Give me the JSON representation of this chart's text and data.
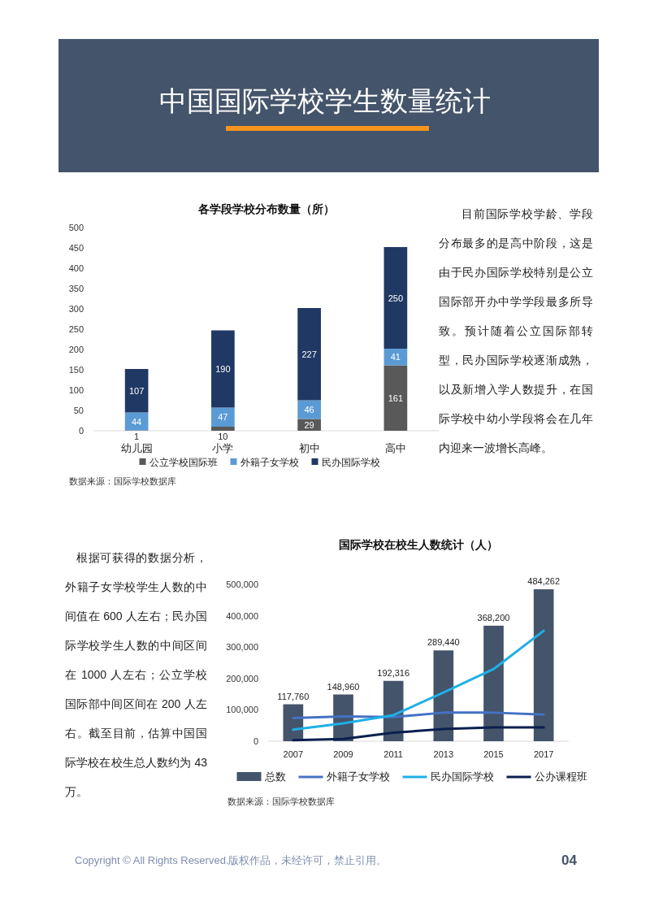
{
  "chart_data": [
    {
      "type": "other",
      "title": "中国国际学校学生数量统计"
    },
    {
      "type": "bar",
      "stacked": true,
      "title": "各学段学校分布数量（所）",
      "categories": [
        "幼儿园",
        "小学",
        "初中",
        "高中"
      ],
      "series": [
        {
          "name": "公立学校国际班",
          "color": "#595959",
          "values": [
            1,
            10,
            29,
            161
          ]
        },
        {
          "name": "外籍子女学校",
          "color": "#5b9bd5",
          "values": [
            44,
            47,
            46,
            41
          ]
        },
        {
          "name": "民办国际学校",
          "color": "#203864",
          "values": [
            107,
            190,
            227,
            250
          ]
        }
      ],
      "ylim": [
        0,
        500
      ],
      "yticks": [
        0,
        50,
        100,
        150,
        200,
        250,
        300,
        350,
        400,
        450,
        500
      ],
      "data_labels": true,
      "legend": "bottom",
      "annotations": [
        "数据来源：国际学校数据库",
        "目前国际学校学龄、学段分布最多的是高中阶段，这是由于民办国际学校特别是公立国际部开办中学学段最多所导致。预计随着公立国际部转型，民办国际学校逐渐成熟，以及新增入学人数提升，在国际学校中幼小学段将会在几年内迎来一波增长高峰。"
      ]
    },
    {
      "type": "bar",
      "title": "国际学校在校生人数统计（人）",
      "categories": [
        "2007",
        "2009",
        "2011",
        "2013",
        "2015",
        "2017"
      ],
      "series": [
        {
          "name": "总数",
          "type": "bar",
          "color": "#44546a",
          "values": [
            117760,
            148960,
            192316,
            289440,
            368200,
            484262
          ],
          "value_labels": [
            "117,760",
            "148,960",
            "192,316",
            "289,440",
            "368,200",
            "484,262"
          ]
        },
        {
          "name": "外籍子女学校",
          "type": "line",
          "color": "#4472c4",
          "values": [
            74000,
            79000,
            77000,
            91000,
            91000,
            85000
          ]
        },
        {
          "name": "民办国际学校",
          "type": "line",
          "color": "#1fb0e8",
          "values": [
            37000,
            57000,
            83000,
            155000,
            230000,
            352000
          ]
        },
        {
          "name": "公办课程班",
          "type": "line",
          "color": "#0b1f4f",
          "values": [
            3000,
            7000,
            27000,
            39000,
            44000,
            44000
          ]
        }
      ],
      "ylim": [
        0,
        500000
      ],
      "yticks": [
        0,
        {
          "value": 100000,
          "label": "100,000"
        },
        {
          "value": 200000,
          "label": "200,000"
        },
        {
          "value": 300000,
          "label": "300,000"
        },
        {
          "value": 400000,
          "label": "400,000"
        },
        {
          "value": 500000,
          "label": "500,000"
        }
      ],
      "legend": "bottom",
      "annotations": [
        "根据可获得的数据分析，外籍子女学校学生人数的中间值在 600 人左右；民办国际学校学生人数的中间区间在 1000 人左右；公立学校国际部中间区间在 200 人左右。截至目前，估算中国国际学校在校生总人数约为 43 万。",
        "数据来源：国际学校数据库"
      ]
    },
    {
      "type": "other",
      "annotations": [
        "Copyright © All Rights Reserved.版权作品，未经许可，禁止引用。",
        "04"
      ]
    }
  ]
}
